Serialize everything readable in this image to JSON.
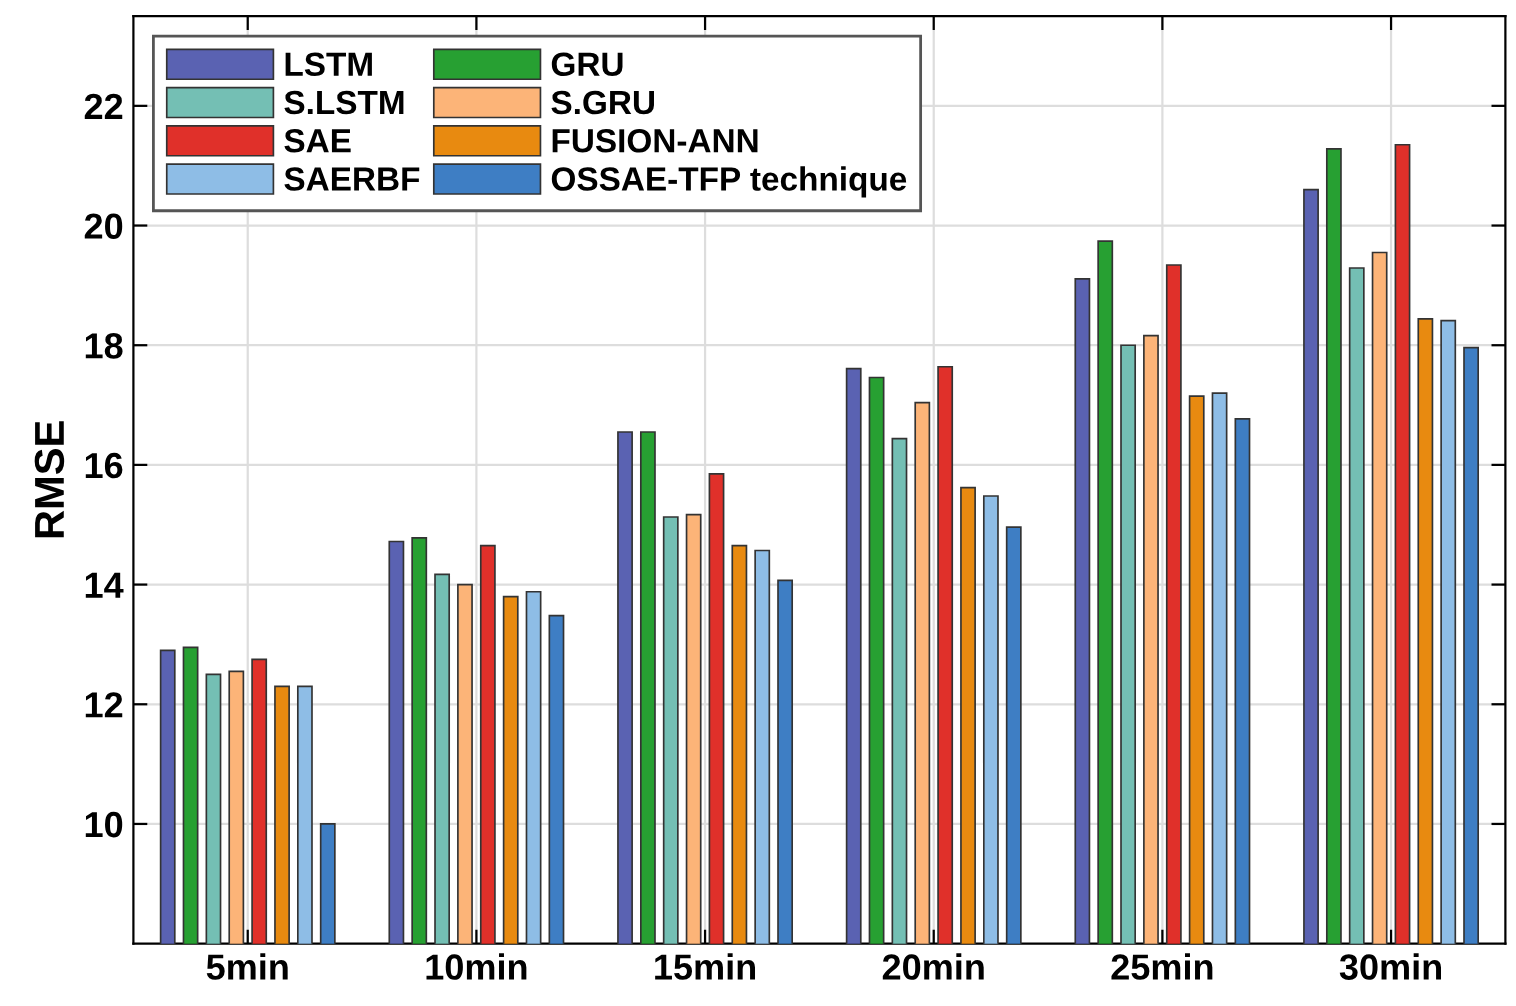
{
  "chart_data": {
    "type": "bar",
    "ylabel": "RMSE",
    "categories": [
      "5min",
      "10min",
      "15min",
      "20min",
      "25min",
      "30min"
    ],
    "series": [
      {
        "name": "LSTM",
        "color": "#5a62b2",
        "values": [
          12.9,
          14.72,
          16.55,
          17.61,
          19.11,
          20.6
        ]
      },
      {
        "name": "GRU",
        "color": "#27a032",
        "values": [
          12.95,
          14.78,
          16.55,
          17.46,
          19.74,
          21.28
        ]
      },
      {
        "name": "S.LSTM",
        "color": "#74bfb4",
        "values": [
          12.5,
          14.17,
          15.13,
          16.44,
          18.0,
          19.29
        ]
      },
      {
        "name": "S.GRU",
        "color": "#fcb478",
        "values": [
          12.55,
          14.0,
          15.17,
          17.04,
          18.16,
          19.55
        ]
      },
      {
        "name": "SAE",
        "color": "#e0302a",
        "values": [
          12.75,
          14.65,
          15.85,
          17.64,
          19.34,
          21.35
        ]
      },
      {
        "name": "FUSION-ANN",
        "color": "#e88a10",
        "values": [
          12.3,
          13.8,
          14.65,
          15.62,
          17.15,
          18.44
        ]
      },
      {
        "name": "SAERBF",
        "color": "#8ebde6",
        "values": [
          12.3,
          13.88,
          14.57,
          15.48,
          17.2,
          18.41
        ]
      },
      {
        "name": "OSSAE-TFP technique",
        "color": "#3e7ec4",
        "values": [
          10.0,
          13.48,
          14.07,
          14.96,
          16.77,
          17.96
        ]
      }
    ],
    "ylim": [
      8,
      23.5
    ],
    "yticks": [
      10,
      12,
      14,
      16,
      18,
      20,
      22
    ],
    "grid": true,
    "legend": "top left"
  }
}
